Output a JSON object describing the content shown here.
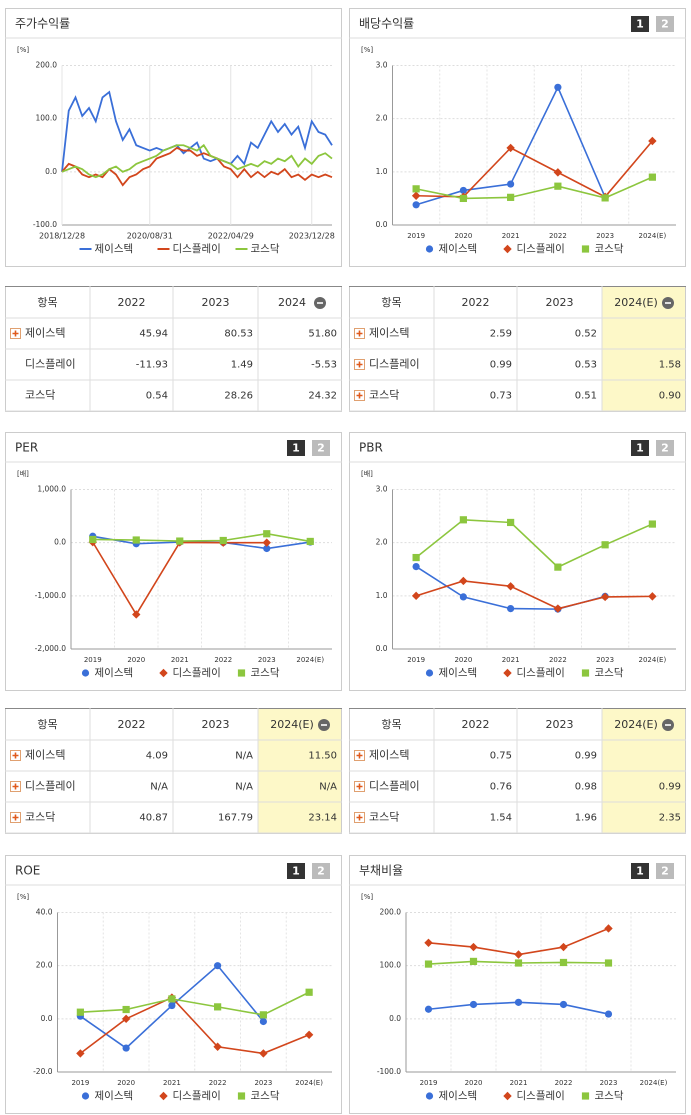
{
  "chart_data": [
    {
      "type": "line",
      "title": "주가수익률",
      "unit_label": "[%]",
      "categories": [
        "2018/12/28",
        null,
        null,
        null,
        null,
        null,
        null,
        null,
        null,
        null,
        null,
        null,
        null,
        "2020/08/31",
        null,
        null,
        null,
        null,
        null,
        null,
        null,
        null,
        null,
        null,
        null,
        "2022/04/29",
        null,
        null,
        null,
        null,
        null,
        null,
        null,
        null,
        null,
        null,
        null,
        "2023/12/28",
        null,
        null,
        null
      ],
      "series": [
        {
          "name": "제이스텍",
          "color": "#3a6fd8",
          "values": [
            0,
            115,
            140,
            105,
            120,
            95,
            140,
            150,
            95,
            60,
            80,
            50,
            45,
            40,
            45,
            40,
            45,
            50,
            35,
            45,
            55,
            25,
            20,
            25,
            20,
            15,
            30,
            15,
            55,
            45,
            70,
            95,
            75,
            90,
            70,
            85,
            45,
            95,
            75,
            70,
            50
          ]
        },
        {
          "name": "디스플레이",
          "color": "#d2461c",
          "values": [
            0,
            15,
            10,
            -5,
            -10,
            -5,
            -10,
            5,
            -5,
            -25,
            -10,
            -5,
            5,
            10,
            25,
            30,
            35,
            45,
            40,
            40,
            30,
            35,
            30,
            25,
            10,
            5,
            -10,
            5,
            -10,
            0,
            -10,
            0,
            -5,
            5,
            -10,
            -5,
            -15,
            -5,
            -10,
            -5,
            -10
          ]
        },
        {
          "name": "코스닥",
          "color": "#8cc63e",
          "values": [
            0,
            5,
            10,
            5,
            -5,
            -10,
            -5,
            5,
            10,
            0,
            5,
            15,
            20,
            25,
            30,
            40,
            45,
            50,
            50,
            45,
            40,
            50,
            30,
            25,
            20,
            15,
            5,
            10,
            15,
            10,
            20,
            15,
            25,
            20,
            30,
            10,
            25,
            15,
            30,
            35,
            25
          ]
        }
      ],
      "ylim": [
        -100,
        200
      ],
      "yticks": [
        {
          "value": -100,
          "label": "-100.0"
        },
        {
          "value": 0,
          "label": "0.0"
        },
        {
          "value": 100,
          "label": "100.0"
        },
        {
          "value": 200,
          "label": "200.0"
        }
      ]
    },
    {
      "type": "line",
      "title": "배당수익률",
      "unit_label": "[%]",
      "page_buttons": [
        "1",
        "2"
      ],
      "marker": true,
      "categories": [
        "2019",
        "2020",
        "2021",
        "2022",
        "2023",
        "2024(E)"
      ],
      "series": [
        {
          "name": "제이스텍",
          "color": "#3a6fd8",
          "marker": "circle",
          "values": [
            0.38,
            0.65,
            0.77,
            2.59,
            0.52,
            null
          ]
        },
        {
          "name": "디스플레이",
          "color": "#d2461c",
          "marker": "diamond",
          "values": [
            0.55,
            0.53,
            1.45,
            0.99,
            0.53,
            1.58
          ]
        },
        {
          "name": "코스닥",
          "color": "#8cc63e",
          "marker": "square",
          "values": [
            0.68,
            0.5,
            0.52,
            0.73,
            0.51,
            0.9
          ]
        }
      ],
      "ylim": [
        0,
        3
      ],
      "yticks": [
        {
          "value": 0,
          "label": "0.0"
        },
        {
          "value": 1,
          "label": "1.0"
        },
        {
          "value": 2,
          "label": "2.0"
        },
        {
          "value": 3,
          "label": "3.0"
        }
      ]
    },
    {
      "type": "line",
      "title": "PER",
      "unit_label": "[배]",
      "page_buttons": [
        "1",
        "2"
      ],
      "marker": true,
      "categories": [
        "2019",
        "2020",
        "2021",
        "2022",
        "2023",
        "2024(E)"
      ],
      "series": [
        {
          "name": "제이스텍",
          "color": "#3a6fd8",
          "marker": "circle",
          "values": [
            120,
            -20,
            10,
            4.09,
            -110,
            11.5
          ]
        },
        {
          "name": "디스플레이",
          "color": "#d2461c",
          "marker": "diamond",
          "values": [
            10,
            -1350,
            5,
            0,
            0,
            null
          ]
        },
        {
          "name": "코스닥",
          "color": "#8cc63e",
          "marker": "square",
          "values": [
            60,
            50,
            30,
            40.87,
            167.79,
            23.14
          ]
        }
      ],
      "ylim": [
        -2000,
        1000
      ],
      "yticks": [
        {
          "value": -2000,
          "label": "-2,000.0"
        },
        {
          "value": -1000,
          "label": "-1,000.0"
        },
        {
          "value": 0,
          "label": "0.0"
        },
        {
          "value": 1000,
          "label": "1,000.0"
        }
      ]
    },
    {
      "type": "line",
      "title": "PBR",
      "unit_label": "[배]",
      "page_buttons": [
        "1",
        "2"
      ],
      "marker": true,
      "categories": [
        "2019",
        "2020",
        "2021",
        "2022",
        "2023",
        "2024(E)"
      ],
      "series": [
        {
          "name": "제이스텍",
          "color": "#3a6fd8",
          "marker": "circle",
          "values": [
            1.55,
            0.98,
            0.76,
            0.75,
            0.99,
            null
          ]
        },
        {
          "name": "디스플레이",
          "color": "#d2461c",
          "marker": "diamond",
          "values": [
            1.0,
            1.28,
            1.18,
            0.76,
            0.98,
            0.99
          ]
        },
        {
          "name": "코스닥",
          "color": "#8cc63e",
          "marker": "square",
          "values": [
            1.72,
            2.43,
            2.38,
            1.54,
            1.96,
            2.35
          ]
        }
      ],
      "ylim": [
        0,
        3
      ],
      "yticks": [
        {
          "value": 0,
          "label": "0.0"
        },
        {
          "value": 1,
          "label": "1.0"
        },
        {
          "value": 2,
          "label": "2.0"
        },
        {
          "value": 3,
          "label": "3.0"
        }
      ]
    },
    {
      "type": "line",
      "title": "ROE",
      "unit_label": "[%]",
      "page_buttons": [
        "1",
        "2"
      ],
      "marker": true,
      "categories": [
        "2019",
        "2020",
        "2021",
        "2022",
        "2023",
        "2024(E)"
      ],
      "series": [
        {
          "name": "제이스텍",
          "color": "#3a6fd8",
          "marker": "circle",
          "values": [
            1,
            -11,
            5,
            20,
            -1,
            null
          ]
        },
        {
          "name": "디스플레이",
          "color": "#d2461c",
          "marker": "diamond",
          "values": [
            -13,
            0,
            8,
            -10.5,
            -13,
            -6
          ]
        },
        {
          "name": "코스닥",
          "color": "#8cc63e",
          "marker": "square",
          "values": [
            2.5,
            3.5,
            7.5,
            4.5,
            1.5,
            10
          ]
        }
      ],
      "ylim": [
        -20,
        40
      ],
      "yticks": [
        {
          "value": -20,
          "label": "-20.0"
        },
        {
          "value": 0,
          "label": "0.0"
        },
        {
          "value": 20,
          "label": "20.0"
        },
        {
          "value": 40,
          "label": "40.0"
        }
      ]
    },
    {
      "type": "line",
      "title": "부채비율",
      "unit_label": "[%]",
      "page_buttons": [
        "1",
        "2"
      ],
      "marker": true,
      "categories": [
        "2019",
        "2020",
        "2021",
        "2022",
        "2023",
        "2024(E)"
      ],
      "series": [
        {
          "name": "제이스텍",
          "color": "#3a6fd8",
          "marker": "circle",
          "values": [
            18,
            27,
            31,
            27,
            9,
            null
          ]
        },
        {
          "name": "디스플레이",
          "color": "#d2461c",
          "marker": "diamond",
          "values": [
            143,
            135,
            121,
            135,
            170,
            null
          ]
        },
        {
          "name": "코스닥",
          "color": "#8cc63e",
          "marker": "square",
          "values": [
            103,
            108,
            105,
            106,
            105,
            null
          ]
        }
      ],
      "ylim": [
        -100,
        200
      ],
      "yticks": [
        {
          "value": -100,
          "label": "-100.0"
        },
        {
          "value": 0,
          "label": "0.0"
        },
        {
          "value": 100,
          "label": "100.0"
        },
        {
          "value": 200,
          "label": "200.0"
        }
      ]
    }
  ],
  "tables": [
    {
      "header": [
        "항목",
        "2022",
        "2023",
        "2024"
      ],
      "highlight_last": false,
      "rows": [
        {
          "label": "제이스텍",
          "expand": true,
          "cells": [
            "45.94",
            "80.53",
            "51.80"
          ]
        },
        {
          "label": "디스플레이",
          "expand": false,
          "cells": [
            "-11.93",
            "1.49",
            "-5.53"
          ]
        },
        {
          "label": "코스닥",
          "expand": false,
          "cells": [
            "0.54",
            "28.26",
            "24.32"
          ]
        }
      ]
    },
    {
      "header": [
        "항목",
        "2022",
        "2023",
        "2024(E)"
      ],
      "highlight_last": true,
      "rows": [
        {
          "label": "제이스텍",
          "expand": true,
          "cells": [
            "2.59",
            "0.52",
            null
          ]
        },
        {
          "label": "디스플레이",
          "expand": true,
          "cells": [
            "0.99",
            "0.53",
            "1.58"
          ]
        },
        {
          "label": "코스닥",
          "expand": true,
          "cells": [
            "0.73",
            "0.51",
            "0.90"
          ]
        }
      ]
    },
    {
      "header": [
        "항목",
        "2022",
        "2023",
        "2024(E)"
      ],
      "highlight_last": true,
      "rows": [
        {
          "label": "제이스텍",
          "expand": true,
          "cells": [
            "4.09",
            "N/A",
            "11.50"
          ]
        },
        {
          "label": "디스플레이",
          "expand": true,
          "cells": [
            "N/A",
            "N/A",
            "N/A"
          ]
        },
        {
          "label": "코스닥",
          "expand": true,
          "cells": [
            "40.87",
            "167.79",
            "23.14"
          ]
        }
      ]
    },
    {
      "header": [
        "항목",
        "2022",
        "2023",
        "2024(E)"
      ],
      "highlight_last": true,
      "rows": [
        {
          "label": "제이스텍",
          "expand": true,
          "cells": [
            "0.75",
            "0.99",
            null
          ]
        },
        {
          "label": "디스플레이",
          "expand": true,
          "cells": [
            "0.76",
            "0.98",
            "0.99"
          ]
        },
        {
          "label": "코스닥",
          "expand": true,
          "cells": [
            "1.54",
            "1.96",
            "2.35"
          ]
        }
      ]
    }
  ]
}
